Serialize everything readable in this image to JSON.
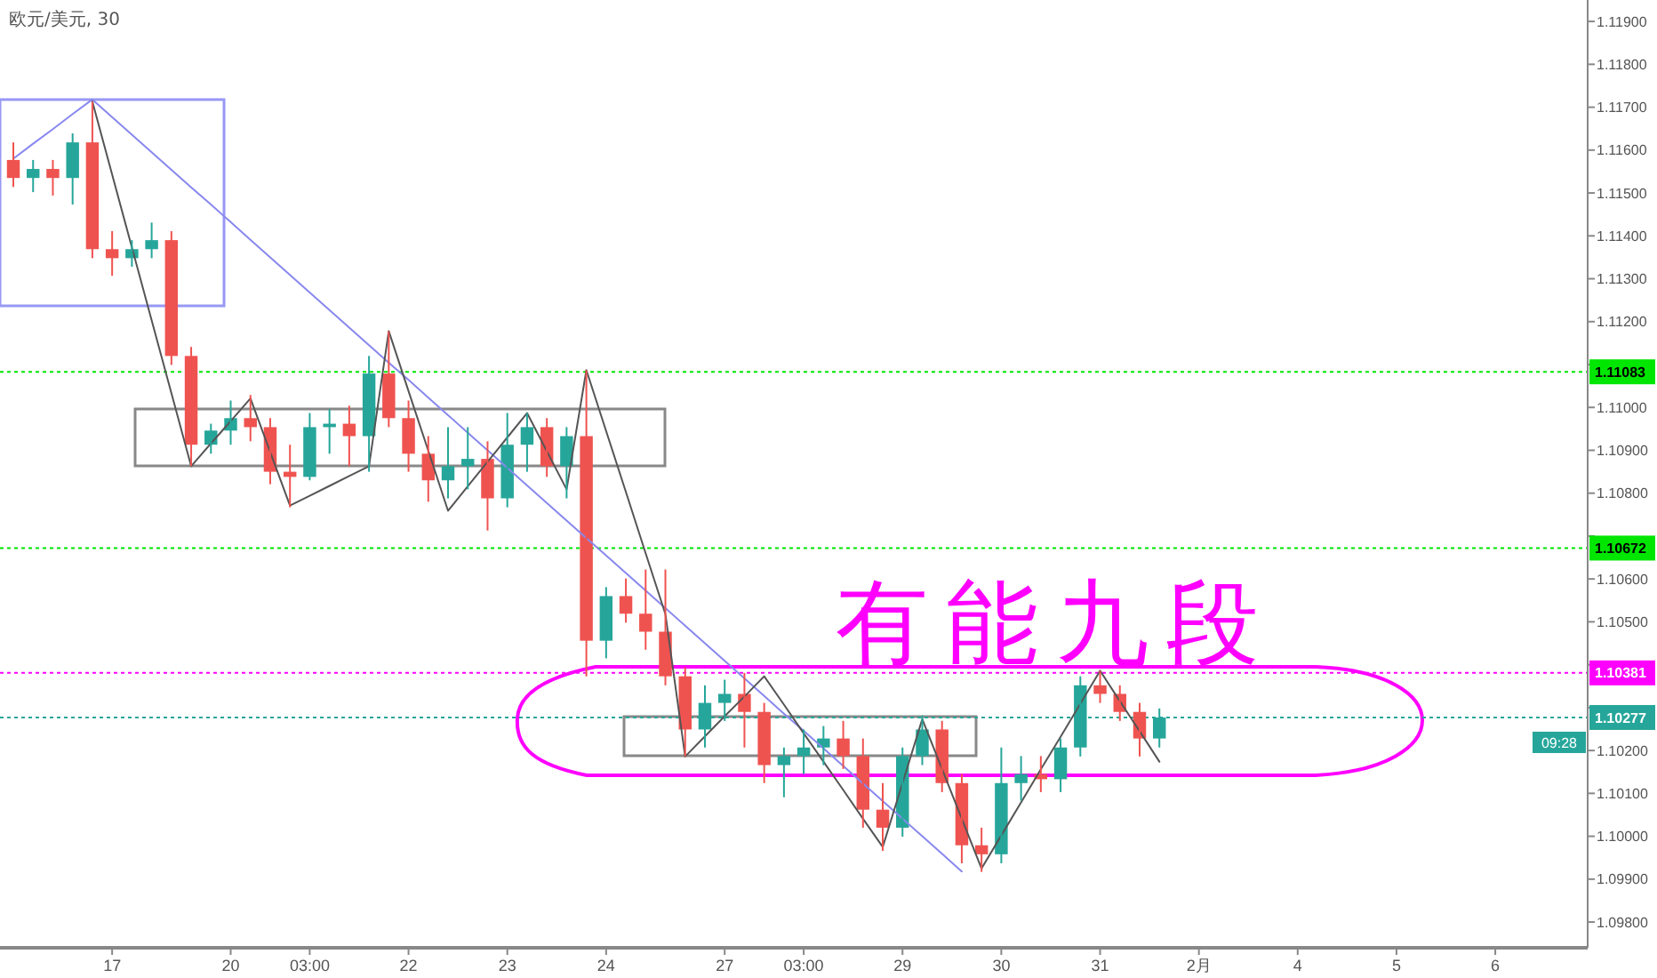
{
  "chart_data": {
    "type": "candlestick",
    "title": "欧元/美元, 30",
    "categories": [
      null,
      null,
      null,
      null,
      null,
      "17",
      null,
      null,
      null,
      null,
      null,
      "20",
      null,
      null,
      null,
      "03:00",
      null,
      null,
      null,
      null,
      "22",
      null,
      null,
      null,
      null,
      "23",
      null,
      null,
      null,
      null,
      "24",
      null,
      null,
      null,
      null,
      null,
      "27",
      null,
      null,
      null,
      "03:00",
      null,
      null,
      null,
      null,
      "29",
      null,
      null,
      null,
      null,
      "30",
      null,
      null,
      null,
      null,
      "31",
      null,
      null,
      null,
      null,
      "2月",
      null,
      null,
      null,
      null,
      "4",
      null,
      null,
      null,
      null,
      "5",
      null,
      null,
      null,
      null,
      "6",
      null,
      null,
      null,
      null
    ],
    "ohlc": [
      [
        1.11577,
        1.11618,
        1.11514,
        1.11535
      ],
      [
        1.11535,
        1.11577,
        1.11502,
        1.11556
      ],
      [
        1.11556,
        1.11577,
        1.11494,
        1.11535
      ],
      [
        1.11535,
        1.11639,
        1.11473,
        1.11618
      ],
      [
        1.11618,
        1.11713,
        1.11348,
        1.11369
      ],
      [
        1.11369,
        1.11411,
        1.11307,
        1.11348
      ],
      [
        1.11348,
        1.1139,
        1.11328,
        1.11369
      ],
      [
        1.11369,
        1.11431,
        1.11348,
        1.1139
      ],
      [
        1.1139,
        1.11411,
        1.11099,
        1.1112
      ],
      [
        1.1112,
        1.11141,
        1.10863,
        1.10913
      ],
      [
        1.10913,
        1.10962,
        1.10892,
        1.10946
      ],
      [
        1.10946,
        1.11016,
        1.10913,
        1.10975
      ],
      [
        1.10975,
        1.11029,
        1.10921,
        1.10954
      ],
      [
        1.10954,
        1.10975,
        1.10821,
        1.1085
      ],
      [
        1.1085,
        1.10913,
        1.10767,
        1.10838
      ],
      [
        1.10838,
        1.10987,
        1.1083,
        1.10954
      ],
      [
        1.10954,
        1.10996,
        1.10892,
        1.10962
      ],
      [
        1.10962,
        1.11004,
        1.10863,
        1.10933
      ],
      [
        1.10933,
        1.1112,
        1.1085,
        1.11079
      ],
      [
        1.11079,
        1.11178,
        1.10954,
        1.10975
      ],
      [
        1.10975,
        1.11016,
        1.1085,
        1.10892
      ],
      [
        1.10892,
        1.10933,
        1.1078,
        1.1083
      ],
      [
        1.1083,
        1.10954,
        1.10788,
        1.10863
      ],
      [
        1.10863,
        1.10954,
        1.10809,
        1.1088
      ],
      [
        1.1088,
        1.10921,
        1.10713,
        1.10788
      ],
      [
        1.10788,
        1.10987,
        1.10767,
        1.10913
      ],
      [
        1.10913,
        1.10987,
        1.1085,
        1.10954
      ],
      [
        1.10954,
        1.10975,
        1.10838,
        1.10863
      ],
      [
        1.10863,
        1.10954,
        1.10788,
        1.10933
      ],
      [
        1.10933,
        1.11087,
        1.10373,
        1.10456
      ],
      [
        1.10456,
        1.10581,
        1.10415,
        1.1056
      ],
      [
        1.1056,
        1.10601,
        1.10498,
        1.10519
      ],
      [
        1.10519,
        1.10622,
        1.10435,
        1.10477
      ],
      [
        1.10477,
        1.10622,
        1.10352,
        1.10373
      ],
      [
        1.10373,
        1.10394,
        1.10186,
        1.10249
      ],
      [
        1.10249,
        1.10352,
        1.10207,
        1.10311
      ],
      [
        1.10311,
        1.10365,
        1.10269,
        1.10332
      ],
      [
        1.10332,
        1.10381,
        1.10207,
        1.1029
      ],
      [
        1.1029,
        1.10311,
        1.10124,
        1.10166
      ],
      [
        1.10166,
        1.10207,
        1.10091,
        1.10187
      ],
      [
        1.10187,
        1.10249,
        1.10145,
        1.10207
      ],
      [
        1.10207,
        1.10257,
        1.10166,
        1.10228
      ],
      [
        1.10228,
        1.10269,
        1.10157,
        1.10187
      ],
      [
        1.10187,
        1.10228,
        1.1002,
        1.10062
      ],
      [
        1.10062,
        1.10124,
        1.09966,
        1.1002
      ],
      [
        1.1002,
        1.10207,
        1.09999,
        1.10187
      ],
      [
        1.10187,
        1.10282,
        1.10166,
        1.10249
      ],
      [
        1.10249,
        1.10269,
        1.10103,
        1.10124
      ],
      [
        1.10124,
        1.10145,
        1.09937,
        1.09979
      ],
      [
        1.09979,
        1.1002,
        1.09917,
        1.09958
      ],
      [
        1.09958,
        1.10207,
        1.09937,
        1.10124
      ],
      [
        1.10124,
        1.10187,
        1.10083,
        1.10145
      ],
      [
        1.10145,
        1.10187,
        1.10103,
        1.10133
      ],
      [
        1.10133,
        1.10228,
        1.10103,
        1.10207
      ],
      [
        1.10207,
        1.10373,
        1.10186,
        1.10352
      ],
      [
        1.10352,
        1.10386,
        1.10311,
        1.10332
      ],
      [
        1.10332,
        1.10352,
        1.10269,
        1.1029
      ],
      [
        1.1029,
        1.10311,
        1.10186,
        1.10228
      ],
      [
        1.10228,
        1.10298,
        1.10207,
        1.10277
      ],
      null,
      null,
      null,
      null,
      null,
      null,
      null,
      null,
      null,
      null,
      null,
      null,
      null,
      null,
      null,
      null,
      null,
      null,
      null,
      null,
      null
    ],
    "colors": [
      "#ef5350",
      "#26a69a",
      "#ef5350",
      "#26a69a",
      "#ef5350",
      "#ef5350",
      "#26a69a",
      "#26a69a",
      "#ef5350",
      "#ef5350",
      "#26a69a",
      "#26a69a",
      "#ef5350",
      "#ef5350",
      "#ef5350",
      "#26a69a",
      "#26a69a",
      "#ef5350",
      "#26a69a",
      "#ef5350",
      "#ef5350",
      "#ef5350",
      "#26a69a",
      "#26a69a",
      "#ef5350",
      "#26a69a",
      "#26a69a",
      "#ef5350",
      "#26a69a",
      "#ef5350",
      "#26a69a",
      "#ef5350",
      "#ef5350",
      "#ef5350",
      "#ef5350",
      "#26a69a",
      "#26a69a",
      "#ef5350",
      "#ef5350",
      "#26a69a",
      "#26a69a",
      "#26a69a",
      "#ef5350",
      "#ef5350",
      "#ef5350",
      "#26a69a",
      "#26a69a",
      "#ef5350",
      "#ef5350",
      "#ef5350",
      "#26a69a",
      "#26a69a",
      "#ef5350",
      "#26a69a",
      "#26a69a",
      "#ef5350",
      "#ef5350",
      "#ef5350",
      "#26a69a",
      null,
      null,
      null,
      null,
      null,
      null,
      null,
      null,
      null,
      null,
      null,
      null,
      null,
      null,
      null,
      null,
      null,
      null,
      null,
      null,
      null
    ],
    "ylim": [
      1.0974,
      1.1195
    ],
    "yticks": [
      {
        "value": 1.098,
        "label": "1.09800"
      },
      {
        "value": 1.099,
        "label": "1.09900"
      },
      {
        "value": 1.1,
        "label": "1.10000"
      },
      {
        "value": 1.101,
        "label": "1.10100"
      },
      {
        "value": 1.102,
        "label": "1.10200"
      },
      {
        "value": 1.103,
        "label": null
      },
      {
        "value": 1.104,
        "label": null
      },
      {
        "value": 1.105,
        "label": "1.10500"
      },
      {
        "value": 1.106,
        "label": "1.10600"
      },
      {
        "value": 1.107,
        "label": null
      },
      {
        "value": 1.108,
        "label": "1.10800"
      },
      {
        "value": 1.109,
        "label": "1.10900"
      },
      {
        "value": 1.11,
        "label": "1.11000"
      },
      {
        "value": 1.111,
        "label": null
      },
      {
        "value": 1.112,
        "label": "1.11200"
      },
      {
        "value": 1.113,
        "label": "1.11300"
      },
      {
        "value": 1.114,
        "label": "1.11400"
      },
      {
        "value": 1.115,
        "label": "1.11500"
      },
      {
        "value": 1.116,
        "label": "1.11600"
      },
      {
        "value": 1.117,
        "label": "1.11700"
      },
      {
        "value": 1.118,
        "label": "1.11800"
      },
      {
        "value": 1.119,
        "label": "1.11900"
      }
    ],
    "ref_lines": [
      {
        "axis": "y",
        "value": 1.11083,
        "label": "1.11083",
        "color": "#00e600",
        "line_style": "dotted"
      },
      {
        "axis": "y",
        "value": 1.10672,
        "label": "1.10672",
        "color": "#00e600",
        "line_style": "dotted"
      },
      {
        "axis": "y",
        "value": 1.10381,
        "label": "1.10381",
        "color": "#ff00ff",
        "line_style": "dotted"
      },
      {
        "axis": "y",
        "value": 1.10277,
        "label": "1.10277",
        "color": "#26a69a",
        "line_style": "dotted"
      }
    ],
    "series": [
      {
        "type": "line",
        "color": "#8888ee",
        "values": [
          1.1158,
          1.11615,
          1.11649,
          1.11684,
          1.11718,
          1.11677,
          1.11636,
          1.11595,
          1.11554,
          1.11513,
          1.11473,
          1.11432,
          1.11391,
          1.1135,
          1.11309,
          1.11268,
          1.11227,
          1.11186,
          1.11145,
          1.11104,
          1.11064,
          1.11023,
          1.10982,
          1.10941,
          1.109,
          1.10859,
          1.10818,
          1.10777,
          1.10736,
          1.10695,
          1.10655,
          1.10614,
          1.10573,
          1.10532,
          1.10491,
          1.1045,
          1.10409,
          1.10368,
          1.10327,
          1.10286,
          1.10246,
          1.10205,
          1.10164,
          1.10123,
          1.10082,
          1.10041,
          1.1,
          1.09959,
          1.09918,
          null,
          null,
          null,
          null,
          null,
          null,
          null,
          null,
          null,
          null,
          null,
          null,
          null,
          null,
          null,
          null,
          null,
          null,
          null,
          null,
          null,
          null,
          null,
          null,
          null,
          null,
          null,
          null,
          null,
          null,
          null
        ]
      },
      {
        "type": "line",
        "color": "#555555",
        "values": [
          null,
          null,
          null,
          null,
          1.11713,
          1.11543,
          1.11373,
          1.11203,
          1.11033,
          1.10863,
          1.10916,
          1.10968,
          1.11021,
          1.10896,
          1.10771,
          1.10794,
          1.10817,
          1.1084,
          1.10863,
          1.11178,
          1.11038,
          1.10899,
          1.10759,
          1.10816,
          1.10873,
          1.1093,
          1.10987,
          1.10898,
          1.10809,
          1.11087,
          1.10945,
          1.10803,
          1.1066,
          1.10518,
          1.10186,
          1.10233,
          1.1028,
          1.10326,
          1.10373,
          1.10307,
          1.1024,
          1.10174,
          1.10108,
          1.10041,
          1.09975,
          1.10124,
          1.10273,
          1.10157,
          1.10041,
          1.09925,
          1.10002,
          1.10079,
          1.10156,
          1.10232,
          1.10309,
          1.10386,
          1.10315,
          1.10245,
          1.10174,
          null,
          null,
          null,
          null,
          null,
          null,
          null,
          null,
          null,
          null,
          null,
          null,
          null,
          null,
          null,
          null,
          null,
          null,
          null,
          null,
          null
        ]
      }
    ],
    "annotations": [
      "有能九段",
      "09:28"
    ]
  }
}
